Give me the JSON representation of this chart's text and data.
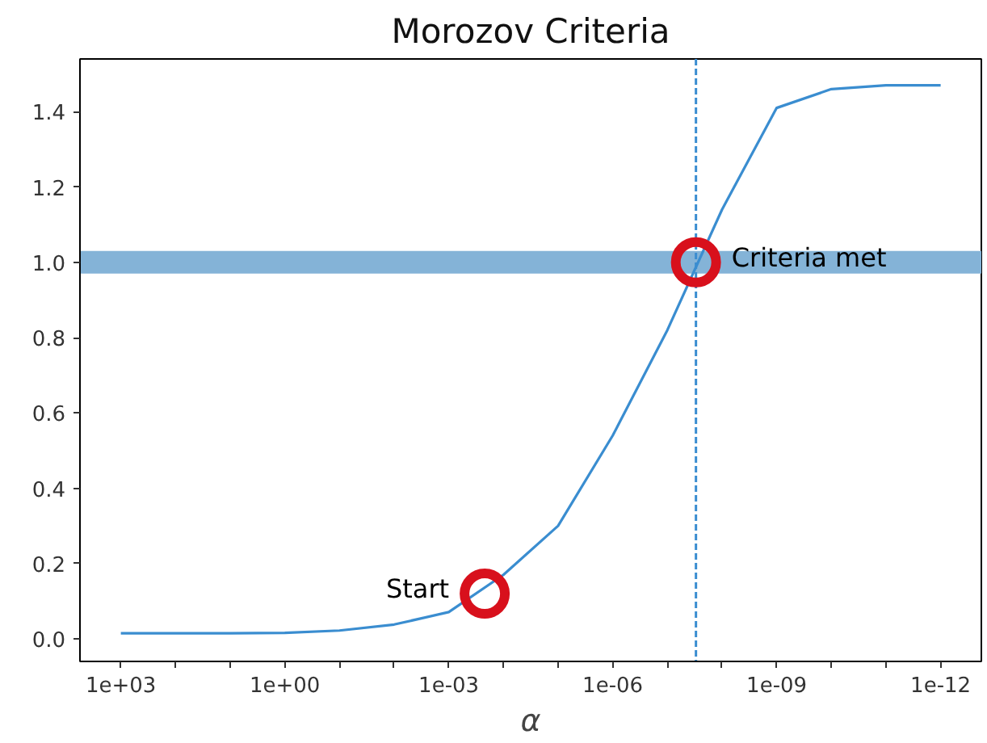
{
  "chart_data": {
    "type": "line",
    "title": "Morozov Criteria",
    "xlabel": "α",
    "x": [
      1000,
      100,
      10,
      1,
      0.1,
      0.01,
      0.001,
      0.0001,
      1e-05,
      1e-06,
      1e-07,
      1e-08,
      1e-09,
      1e-10,
      1e-11,
      1e-12
    ],
    "series": [
      {
        "color": "#3a8dd0",
        "values": [
          0.015,
          0.015,
          0.015,
          0.016,
          0.022,
          0.038,
          0.071,
          0.17,
          0.3,
          0.54,
          0.82,
          1.14,
          1.41,
          1.46,
          1.47,
          1.47
        ]
      }
    ],
    "log": "x",
    "xlim": [
      5600,
      1.8e-13
    ],
    "xticks": [
      {
        "value": 1000,
        "label": "1e+03"
      },
      {
        "value": 100,
        "label": null
      },
      {
        "value": 10,
        "label": null
      },
      {
        "value": 1,
        "label": "1e+00"
      },
      {
        "value": 0.1,
        "label": null
      },
      {
        "value": 0.01,
        "label": null
      },
      {
        "value": 0.001,
        "label": "1e-03"
      },
      {
        "value": 0.0001,
        "label": null
      },
      {
        "value": 1e-05,
        "label": null
      },
      {
        "value": 1e-06,
        "label": "1e-06"
      },
      {
        "value": 1e-07,
        "label": null
      },
      {
        "value": 1e-08,
        "label": null
      },
      {
        "value": 1e-09,
        "label": "1e-09"
      },
      {
        "value": 1e-10,
        "label": null
      },
      {
        "value": 1e-11,
        "label": null
      },
      {
        "value": 1e-12,
        "label": "1e-12"
      }
    ],
    "ylim": [
      -0.06,
      1.54
    ],
    "yticks": [
      {
        "value": 0,
        "label": "0.0"
      },
      0.2,
      0.4,
      0.6,
      0.8,
      {
        "value": 1,
        "label": "1.0"
      },
      1.2,
      1.4
    ],
    "ref_lines": [
      {
        "axis": "x",
        "value": 3e-08,
        "color": "#3a8dd0",
        "line_style": "dashed"
      }
    ],
    "bands": [
      {
        "axis": "y",
        "from": 0.97,
        "to": 1.03,
        "color": "#84b3d7"
      }
    ],
    "annotations": [
      {
        "text": "Start",
        "x": 0.00022,
        "y": 0.12
      },
      {
        "text": "Criteria met",
        "x": 3e-08,
        "y": 1.0
      }
    ],
    "grid": false,
    "marker": "none",
    "line_style": "solid"
  }
}
